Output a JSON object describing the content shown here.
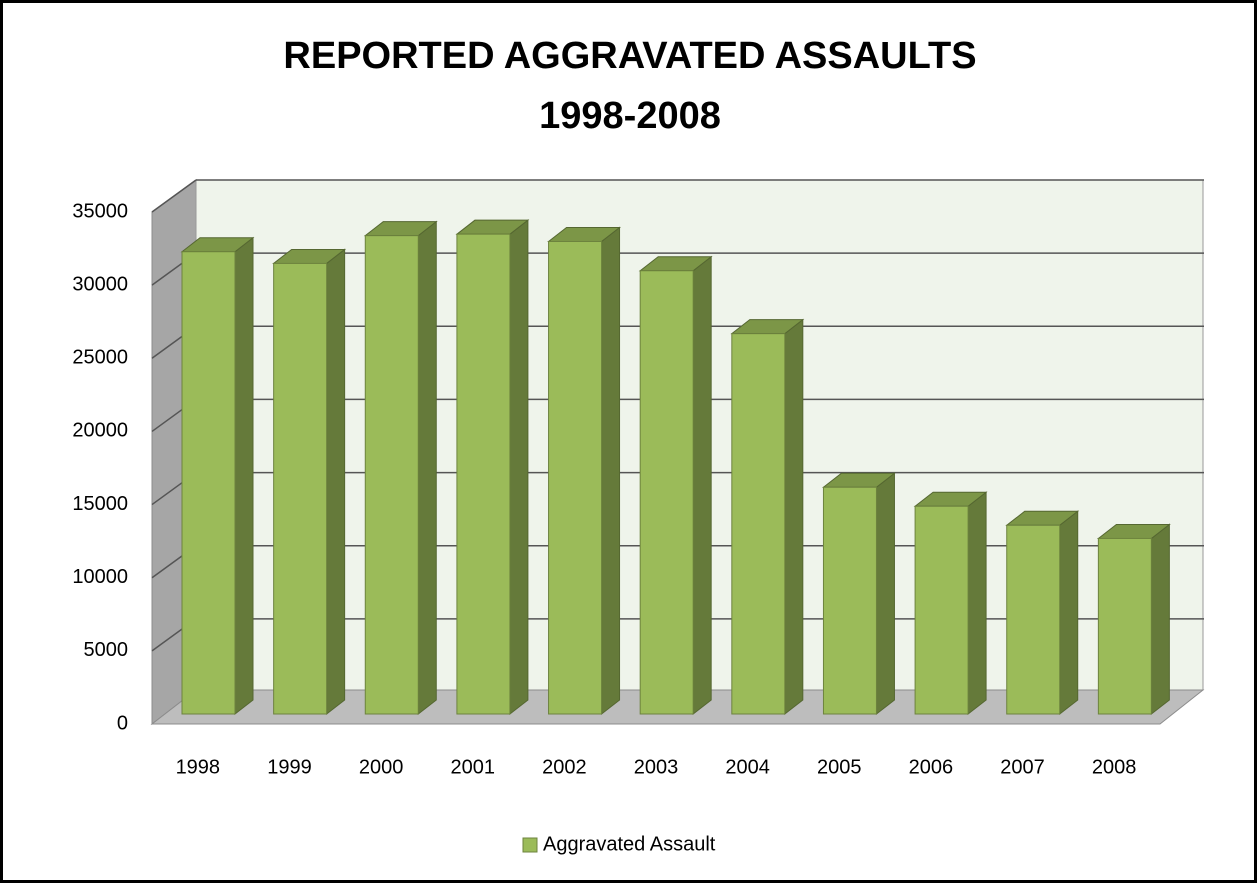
{
  "chart_data": {
    "type": "bar3d",
    "title": [
      "REPORTED AGGRAVATED ASSAULTS",
      "1998-2008"
    ],
    "categories": [
      "1998",
      "1999",
      "2000",
      "2001",
      "2002",
      "2003",
      "2004",
      "2005",
      "2006",
      "2007",
      "2008"
    ],
    "series": [
      {
        "name": "Aggravated Assault",
        "color": "#9bbb59",
        "values": [
          31600,
          30800,
          32700,
          32800,
          32300,
          30300,
          26000,
          15500,
          14200,
          12900,
          12000
        ]
      }
    ],
    "ylim": [
      0,
      35000
    ],
    "yticks": [
      0,
      5000,
      10000,
      15000,
      20000,
      25000,
      30000,
      35000
    ],
    "grid": true,
    "legend": "bottom"
  }
}
